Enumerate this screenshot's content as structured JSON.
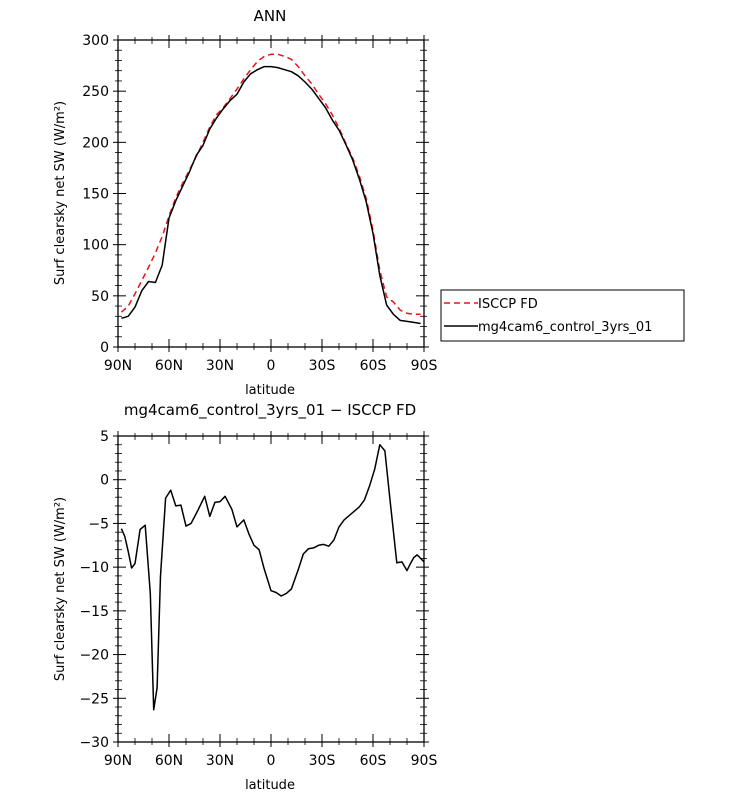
{
  "chart_data": [
    {
      "type": "line",
      "title": "ANN",
      "xlabel": "latitude",
      "ylabel": "Surf clearsky net SW (W/m²)",
      "xlim": [
        90,
        -90
      ],
      "ylim": [
        0,
        300
      ],
      "xticks": [
        {
          "value": 90,
          "label": "90N"
        },
        {
          "value": 60,
          "label": "60N"
        },
        {
          "value": 30,
          "label": "30N"
        },
        {
          "value": 0,
          "label": "0"
        },
        {
          "value": -30,
          "label": "30S"
        },
        {
          "value": -60,
          "label": "60S"
        },
        {
          "value": -90,
          "label": "90S"
        }
      ],
      "yticks": [
        0,
        50,
        100,
        150,
        200,
        250,
        300
      ],
      "legend": {
        "placement": "right",
        "entries": [
          "ISCCP FD",
          "mg4cam6_control_3yrs_01"
        ]
      },
      "series": [
        {
          "name": "ISCCP FD",
          "color": "#e8141c",
          "dash": "dashed",
          "x": [
            88,
            84,
            80,
            76,
            72,
            68,
            64,
            60,
            56,
            52,
            48,
            44,
            40,
            36,
            32,
            28,
            24,
            20,
            16,
            12,
            8,
            4,
            0,
            -4,
            -8,
            -12,
            -16,
            -20,
            -24,
            -28,
            -32,
            -36,
            -40,
            -44,
            -48,
            -52,
            -56,
            -60,
            -64,
            -68,
            -72,
            -76,
            -80,
            -84,
            -88
          ],
          "values": [
            34,
            40,
            52,
            65,
            78,
            92,
            108,
            128,
            146,
            160,
            173,
            186,
            200,
            215,
            227,
            234,
            243,
            252,
            262,
            271,
            279,
            284,
            286,
            286,
            284,
            281,
            274,
            265,
            257,
            247,
            238,
            227,
            214,
            199,
            185,
            167,
            145,
            114,
            75,
            49,
            44,
            36,
            33,
            32,
            32
          ]
        },
        {
          "name": "mg4cam6_control_3yrs_01",
          "color": "#000000",
          "dash": "solid",
          "x": [
            88,
            84,
            80,
            76,
            72,
            68,
            64,
            60,
            56,
            52,
            48,
            44,
            40,
            36,
            32,
            28,
            24,
            20,
            16,
            12,
            8,
            4,
            0,
            -4,
            -8,
            -12,
            -16,
            -20,
            -24,
            -28,
            -32,
            -36,
            -40,
            -44,
            -48,
            -52,
            -56,
            -60,
            -64,
            -68,
            -72,
            -76,
            -80,
            -84,
            -88
          ],
          "values": [
            28,
            30,
            39,
            55,
            64,
            63,
            80,
            126,
            143,
            157,
            171,
            187,
            197,
            213,
            224,
            233,
            241,
            247,
            259,
            267,
            271,
            274,
            274,
            273,
            271,
            269,
            265,
            259,
            252,
            243,
            234,
            222,
            212,
            198,
            183,
            164,
            142,
            111,
            70,
            41,
            32,
            26,
            25,
            24,
            23
          ]
        }
      ]
    },
    {
      "type": "line",
      "title": "mg4cam6_control_3yrs_01 − ISCCP FD",
      "xlabel": "latitude",
      "ylabel": "Surf clearsky net SW (W/m²)",
      "xlim": [
        90,
        -90
      ],
      "ylim": [
        -30,
        5
      ],
      "xticks": [
        {
          "value": 90,
          "label": "90N"
        },
        {
          "value": 60,
          "label": "60N"
        },
        {
          "value": 30,
          "label": "30N"
        },
        {
          "value": 0,
          "label": "0"
        },
        {
          "value": -30,
          "label": "30S"
        },
        {
          "value": -60,
          "label": "60S"
        },
        {
          "value": -90,
          "label": "90S"
        }
      ],
      "yticks": [
        5,
        0,
        -5,
        -10,
        -15,
        -20,
        -25,
        -30
      ],
      "series": [
        {
          "color": "#000000",
          "dash": "solid",
          "x": [
            88,
            86,
            84,
            82,
            80,
            77,
            74,
            71,
            69,
            67,
            65,
            62,
            59,
            56,
            53,
            50,
            47,
            43,
            39,
            36,
            33,
            30,
            27,
            23,
            20,
            16,
            13,
            10,
            7,
            4,
            0,
            -3,
            -6,
            -9,
            -12,
            -16,
            -19,
            -22,
            -25,
            -28,
            -31,
            -34,
            -37,
            -40,
            -43,
            -46,
            -49,
            -52,
            -55,
            -58,
            -61,
            -64,
            -67,
            -70,
            -74,
            -77,
            -80,
            -82,
            -84,
            -86,
            -88,
            -90
          ],
          "values": [
            -5.6,
            -6.5,
            -8.2,
            -10.1,
            -9.6,
            -5.7,
            -5.2,
            -13,
            -26.3,
            -23.8,
            -11,
            -2.1,
            -1.2,
            -3,
            -2.9,
            -5.3,
            -5,
            -3.5,
            -1.9,
            -4.2,
            -2.6,
            -2.5,
            -1.9,
            -3.4,
            -5.4,
            -4.6,
            -6.2,
            -7.5,
            -8,
            -10.2,
            -12.7,
            -12.9,
            -13.3,
            -13,
            -12.5,
            -10.3,
            -8.5,
            -7.9,
            -7.8,
            -7.5,
            -7.4,
            -7.6,
            -6.9,
            -5.4,
            -4.6,
            -4.1,
            -3.6,
            -3.1,
            -2.3,
            -0.7,
            1.2,
            4,
            3.3,
            -2.3,
            -9.5,
            -9.4,
            -10.4,
            -9.6,
            -8.9,
            -8.6,
            -9,
            -9.4
          ]
        }
      ]
    }
  ]
}
